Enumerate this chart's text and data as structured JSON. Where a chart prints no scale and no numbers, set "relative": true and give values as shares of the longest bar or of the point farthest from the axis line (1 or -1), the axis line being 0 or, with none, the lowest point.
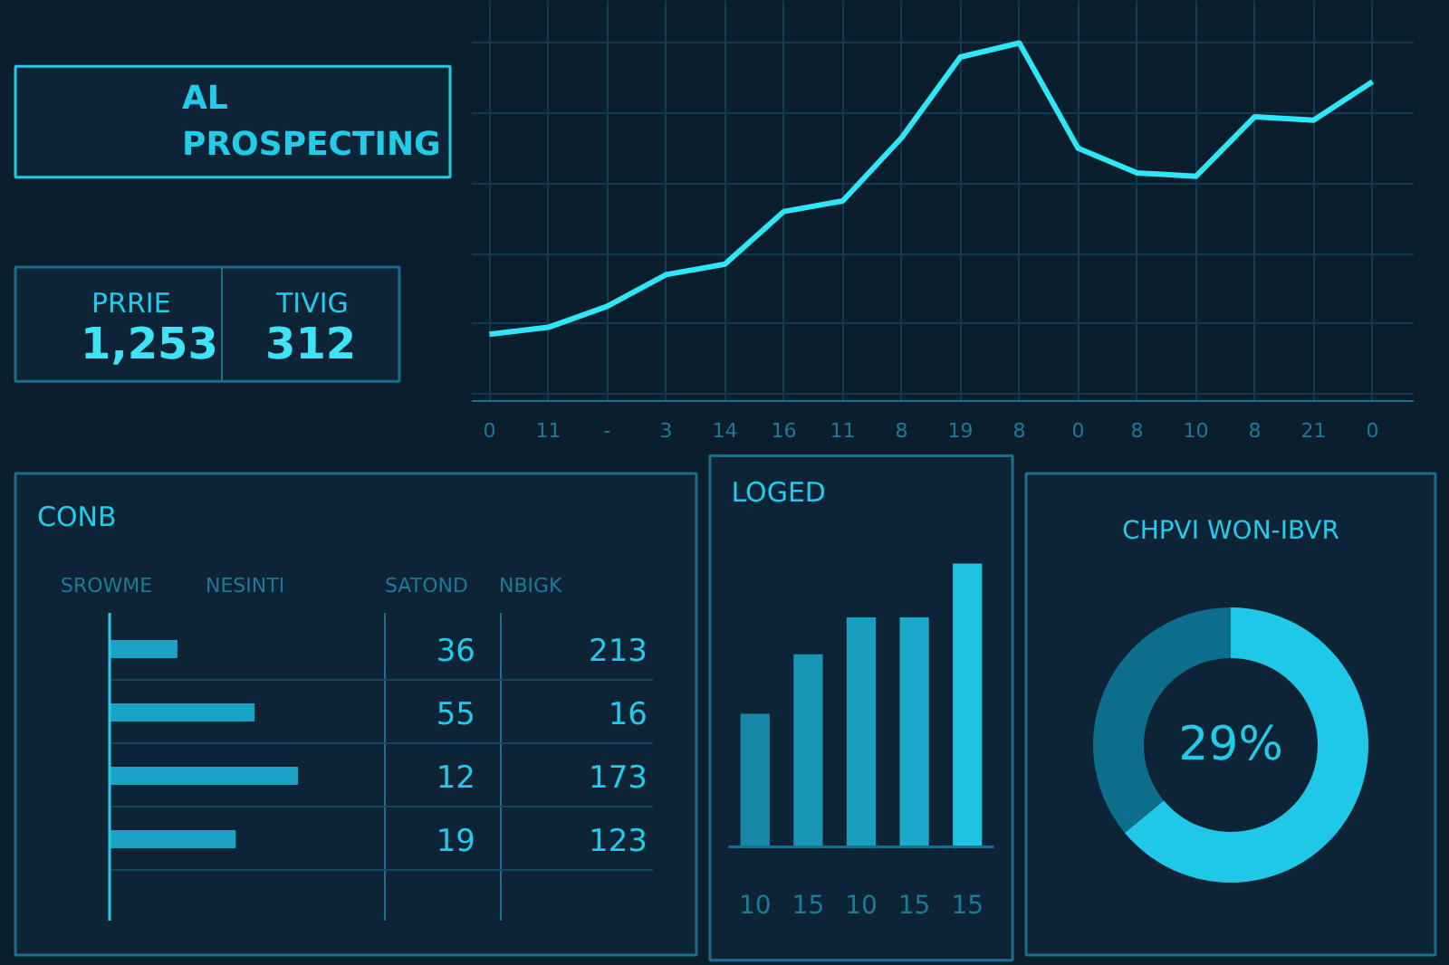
{
  "chart_data": [
    {
      "type": "other",
      "title": "AL PROSPECTING",
      "annotations": [
        "PRRIE",
        "1,253",
        "TIVIG",
        "312"
      ]
    },
    {
      "type": "line",
      "relative": true,
      "grid": true,
      "categories": [
        "0",
        "11",
        "-",
        "3",
        "14",
        "16",
        "11",
        "8",
        "19",
        "8",
        "0",
        "8",
        "10",
        "8",
        "21",
        "0"
      ],
      "color": "#2ee6f5",
      "values": [
        0.17,
        0.19,
        0.25,
        0.34,
        0.37,
        0.52,
        0.55,
        0.73,
        0.96,
        1,
        0.7,
        0.63,
        0.62,
        0.79,
        0.78,
        0.89
      ]
    },
    {
      "type": "bar",
      "orientation": "horizontal",
      "relative": true,
      "title": "CONB",
      "categories": [
        null,
        null,
        null,
        null
      ],
      "color": "#1ba3c6",
      "values": [
        0.36,
        0.77,
        1,
        0.67
      ],
      "annotations": [
        "SROWME",
        "NESINTI",
        "SATOND",
        "NBIGK",
        "36",
        "213",
        "55",
        "16",
        "12",
        "173",
        "19",
        "123"
      ]
    },
    {
      "type": "bar",
      "relative": true,
      "title": "LOGED",
      "categories": [
        "10",
        "15",
        "10",
        "15",
        "15"
      ],
      "colors": [
        "#168aa8",
        "#1894b4",
        "#1a9fc0",
        "#1ba8c9",
        "#20c2e0"
      ],
      "values": [
        0.47,
        0.68,
        0.81,
        0.81,
        1
      ]
    },
    {
      "type": "donut",
      "title": "CHPVI WON-IBVR",
      "categories": [
        null,
        null
      ],
      "values": [
        64,
        36
      ],
      "colors": [
        "#1fc8e6",
        "#0e6f8c"
      ],
      "annotations": [
        "29%"
      ]
    }
  ]
}
